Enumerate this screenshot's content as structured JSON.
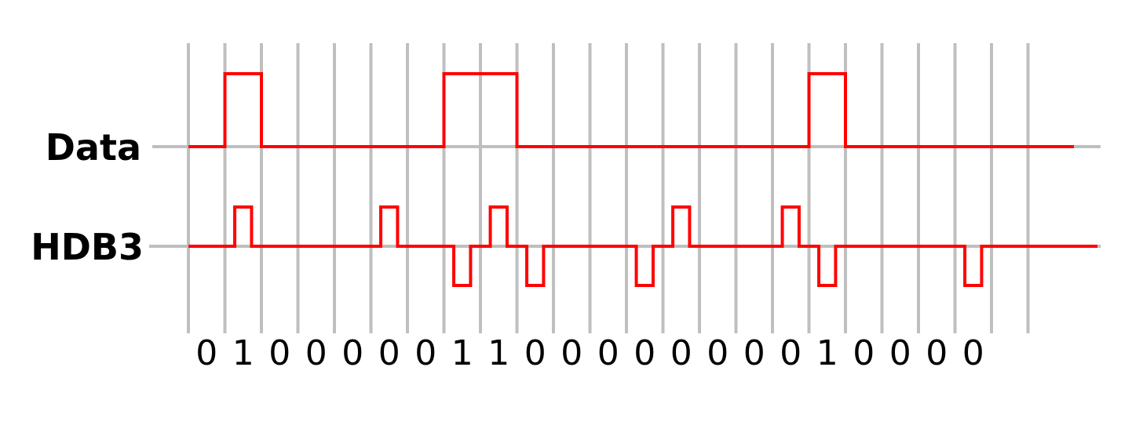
{
  "rows": {
    "data_label": "Data",
    "hdb3_label": "HDB3"
  },
  "bits": [
    "0",
    "1",
    "0",
    "0",
    "0",
    "0",
    "0",
    "1",
    "1",
    "0",
    "0",
    "0",
    "0",
    "0",
    "0",
    "0",
    "0",
    "1",
    "0",
    "0",
    "0",
    "0"
  ],
  "signal_color": "#ff0000",
  "grid_color": "#bfbfbf",
  "signals": {
    "data": [
      0,
      1,
      0,
      0,
      0,
      0,
      0,
      1,
      1,
      0,
      0,
      0,
      0,
      0,
      0,
      0,
      0,
      1,
      0,
      0,
      0,
      0
    ],
    "hdb3": [
      0,
      1,
      0,
      0,
      0,
      1,
      0,
      -1,
      1,
      -1,
      0,
      0,
      -1,
      1,
      0,
      0,
      1,
      -1,
      0,
      0,
      0,
      -1
    ]
  }
}
